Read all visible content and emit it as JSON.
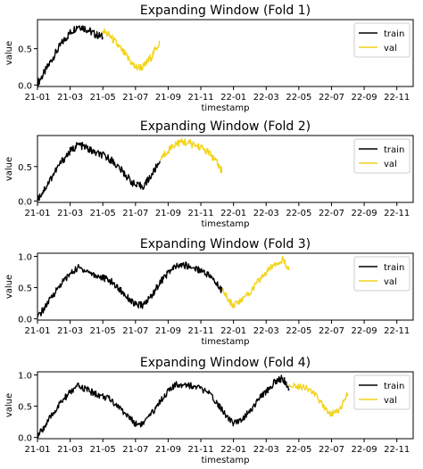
{
  "chart_data": [
    {
      "type": "line",
      "title": "Expanding Window  (Fold 1)",
      "xlabel": "timestamp",
      "ylabel": "value",
      "x_ticks": [
        "21-01",
        "21-03",
        "21-05",
        "21-07",
        "21-09",
        "21-11",
        "22-01",
        "22-03",
        "22-05",
        "22-07",
        "22-09",
        "22-11"
      ],
      "y_ticks": [
        "0.0",
        "0.5"
      ],
      "ylim": [
        -0.02,
        0.9
      ],
      "grid": false,
      "legend": "top-right",
      "series": [
        {
          "name": "train",
          "color": "#000000",
          "x_start": "21-01",
          "x_end": "21-05",
          "x": [
            0,
            0.5,
            1,
            1.5,
            2,
            2.5,
            3,
            3.5,
            4
          ],
          "y": [
            0.02,
            0.2,
            0.4,
            0.58,
            0.72,
            0.82,
            0.77,
            0.7,
            0.66
          ]
        },
        {
          "name": "val",
          "color": "#f2d41a",
          "x_start": "21-05",
          "x_end": "21-08",
          "x": [
            4,
            4.5,
            5,
            5.5,
            6,
            6.5,
            7,
            7.5
          ],
          "y": [
            0.75,
            0.66,
            0.52,
            0.38,
            0.24,
            0.25,
            0.4,
            0.6
          ]
        }
      ]
    },
    {
      "type": "line",
      "title": "Expanding Window  (Fold 2)",
      "xlabel": "timestamp",
      "ylabel": "value",
      "x_ticks": [
        "21-01",
        "21-03",
        "21-05",
        "21-07",
        "21-09",
        "21-11",
        "22-01",
        "22-03",
        "22-05",
        "22-07",
        "22-09",
        "22-11"
      ],
      "y_ticks": [
        "0.0",
        "0.5"
      ],
      "ylim": [
        -0.02,
        0.95
      ],
      "grid": false,
      "legend": "top-right",
      "series": [
        {
          "name": "train",
          "color": "#000000",
          "x_start": "21-01",
          "x_end": "21-08",
          "x": [
            0,
            0.5,
            1,
            1.5,
            2,
            2.5,
            3,
            3.5,
            4,
            4.5,
            5,
            5.5,
            6,
            6.5,
            7,
            7.5
          ],
          "y": [
            0.02,
            0.2,
            0.4,
            0.58,
            0.72,
            0.82,
            0.77,
            0.7,
            0.66,
            0.6,
            0.48,
            0.35,
            0.22,
            0.22,
            0.38,
            0.58
          ]
        },
        {
          "name": "val",
          "color": "#f2d41a",
          "x_start": "21-08",
          "x_end": "21-12",
          "x": [
            7.5,
            8,
            8.5,
            9,
            9.5,
            10,
            10.5,
            11,
            11.3
          ],
          "y": [
            0.6,
            0.74,
            0.84,
            0.86,
            0.82,
            0.78,
            0.7,
            0.55,
            0.42
          ]
        }
      ]
    },
    {
      "type": "line",
      "title": "Expanding Window  (Fold 3)",
      "xlabel": "timestamp",
      "ylabel": "value",
      "x_ticks": [
        "21-01",
        "21-03",
        "21-05",
        "21-07",
        "21-09",
        "21-11",
        "22-01",
        "22-03",
        "22-05",
        "22-07",
        "22-09",
        "22-11"
      ],
      "y_ticks": [
        "0.0",
        "0.5",
        "1.0"
      ],
      "ylim": [
        -0.02,
        1.05
      ],
      "grid": false,
      "legend": "top-right",
      "series": [
        {
          "name": "train",
          "color": "#000000",
          "x_start": "21-01",
          "x_end": "21-12",
          "x": [
            0,
            0.5,
            1,
            1.5,
            2,
            2.5,
            3,
            3.5,
            4,
            4.5,
            5,
            5.5,
            6,
            6.5,
            7,
            7.5,
            8,
            8.5,
            9,
            9.5,
            10,
            10.5,
            11,
            11.3
          ],
          "y": [
            0.02,
            0.2,
            0.4,
            0.58,
            0.72,
            0.82,
            0.77,
            0.7,
            0.66,
            0.6,
            0.48,
            0.35,
            0.22,
            0.22,
            0.38,
            0.58,
            0.74,
            0.84,
            0.86,
            0.82,
            0.78,
            0.7,
            0.55,
            0.45
          ]
        },
        {
          "name": "val",
          "color": "#f2d41a",
          "x_start": "21-12",
          "x_end": "22-04",
          "x": [
            11.3,
            11.7,
            12,
            12.5,
            13,
            13.5,
            14,
            14.5,
            15,
            15.4
          ],
          "y": [
            0.48,
            0.3,
            0.22,
            0.3,
            0.42,
            0.6,
            0.74,
            0.88,
            0.95,
            0.78
          ]
        }
      ]
    },
    {
      "type": "line",
      "title": "Expanding Window  (Fold 4)",
      "xlabel": "timestamp",
      "ylabel": "value",
      "x_ticks": [
        "21-01",
        "21-03",
        "21-05",
        "21-07",
        "21-09",
        "21-11",
        "22-01",
        "22-03",
        "22-05",
        "22-07",
        "22-09",
        "22-11"
      ],
      "y_ticks": [
        "0.0",
        "0.5",
        "1.0"
      ],
      "ylim": [
        -0.02,
        1.05
      ],
      "grid": false,
      "legend": "top-right",
      "series": [
        {
          "name": "train",
          "color": "#000000",
          "x_start": "21-01",
          "x_end": "22-04",
          "x": [
            0,
            0.5,
            1,
            1.5,
            2,
            2.5,
            3,
            3.5,
            4,
            4.5,
            5,
            5.5,
            6,
            6.5,
            7,
            7.5,
            8,
            8.5,
            9,
            9.5,
            10,
            10.5,
            11,
            11.3,
            11.7,
            12,
            12.5,
            13,
            13.5,
            14,
            14.5,
            15,
            15.4
          ],
          "y": [
            0.02,
            0.2,
            0.4,
            0.58,
            0.72,
            0.82,
            0.77,
            0.7,
            0.66,
            0.6,
            0.48,
            0.35,
            0.22,
            0.22,
            0.38,
            0.58,
            0.74,
            0.84,
            0.86,
            0.82,
            0.78,
            0.7,
            0.55,
            0.45,
            0.3,
            0.22,
            0.3,
            0.42,
            0.6,
            0.74,
            0.88,
            0.95,
            0.78
          ]
        },
        {
          "name": "val",
          "color": "#f2d41a",
          "x_start": "22-04",
          "x_end": "22-08",
          "x": [
            15.4,
            16,
            16.5,
            17,
            17.5,
            18,
            18.5,
            19
          ],
          "y": [
            0.85,
            0.82,
            0.8,
            0.68,
            0.5,
            0.38,
            0.45,
            0.7
          ]
        }
      ]
    }
  ]
}
